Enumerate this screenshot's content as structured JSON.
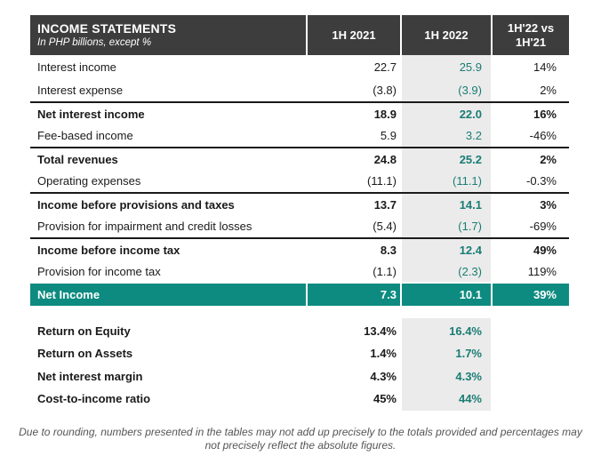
{
  "header": {
    "title": "INCOME STATEMENTS",
    "subtitle": "In PHP billions, except %",
    "col_2021": "1H 2021",
    "col_2022": "1H 2022",
    "col_vs": "1H'22 vs 1H'21"
  },
  "rows": [
    {
      "label": "Interest income",
      "y2021": "22.7",
      "y2022": "25.9",
      "vs": "14%"
    },
    {
      "label": "Interest expense",
      "y2021": "(3.8)",
      "y2022": "(3.9)",
      "vs": "2%"
    },
    {
      "label": "Net interest income",
      "y2021": "18.9",
      "y2022": "22.0",
      "vs": "16%"
    },
    {
      "label": "Fee-based income",
      "y2021": "5.9",
      "y2022": "3.2",
      "vs": "-46%"
    },
    {
      "label": "Total revenues",
      "y2021": "24.8",
      "y2022": "25.2",
      "vs": "2%"
    },
    {
      "label": "Operating expenses",
      "y2021": "(11.1)",
      "y2022": "(11.1)",
      "vs": "-0.3%"
    },
    {
      "label": "Income before provisions and taxes",
      "y2021": "13.7",
      "y2022": "14.1",
      "vs": "3%"
    },
    {
      "label": "Provision for impairment and credit losses",
      "y2021": "(5.4)",
      "y2022": "(1.7)",
      "vs": "-69%"
    },
    {
      "label": "Income before income tax",
      "y2021": "8.3",
      "y2022": "12.4",
      "vs": "49%"
    },
    {
      "label": "Provision for income tax",
      "y2021": "(1.1)",
      "y2022": "(2.3)",
      "vs": "119%"
    },
    {
      "label": "Net Income",
      "y2021": "7.3",
      "y2022": "10.1",
      "vs": "39%"
    }
  ],
  "ratios": [
    {
      "label": "Return on Equity",
      "y2021": "13.4%",
      "y2022": "16.4%"
    },
    {
      "label": "Return on Assets",
      "y2021": "1.4%",
      "y2022": "1.7%"
    },
    {
      "label": "Net interest margin",
      "y2021": "4.3%",
      "y2022": "4.3%"
    },
    {
      "label": "Cost-to-income ratio",
      "y2021": "45%",
      "y2022": "44%"
    }
  ],
  "footnote": "Due to rounding, numbers presented in the tables may not add up precisely to the totals provided and percentages may not precisely reflect the absolute figures.",
  "colors": {
    "header_bg": "#3d3d3d",
    "accent": "#0e8b80",
    "accent_text": "#1a7d74",
    "shade": "#ebebeb"
  }
}
